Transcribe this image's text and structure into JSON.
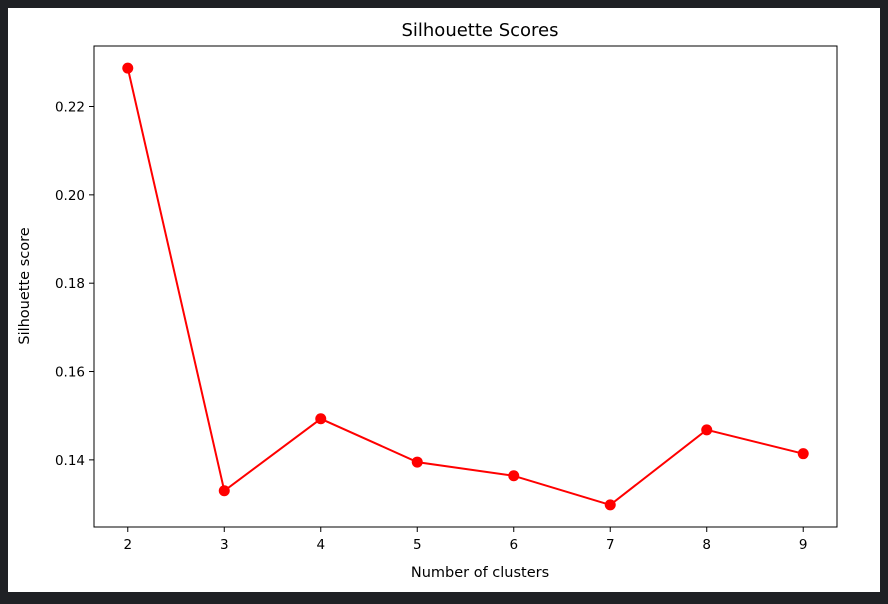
{
  "chart_data": {
    "type": "line",
    "title": "Silhouette Scores",
    "xlabel": "Number of clusters",
    "ylabel": "Silhouette score",
    "x": [
      2,
      3,
      4,
      5,
      6,
      7,
      8,
      9
    ],
    "series": [
      {
        "values": [
          0.2287,
          0.133,
          0.1493,
          0.1395,
          0.1364,
          0.1298,
          0.1468,
          0.1414
        ],
        "color": "#ff0000",
        "marker": "circle"
      }
    ],
    "xticks": [
      2,
      3,
      4,
      5,
      6,
      7,
      8,
      9
    ],
    "yticks": [
      0.14,
      0.16,
      0.18,
      0.2,
      0.22
    ],
    "ytick_labels": [
      "0.14",
      "0.16",
      "0.18",
      "0.20",
      "0.22"
    ],
    "xlim": [
      1.65,
      9.35
    ],
    "ylim": [
      0.1248,
      0.2337
    ],
    "grid": false,
    "legend": false
  }
}
